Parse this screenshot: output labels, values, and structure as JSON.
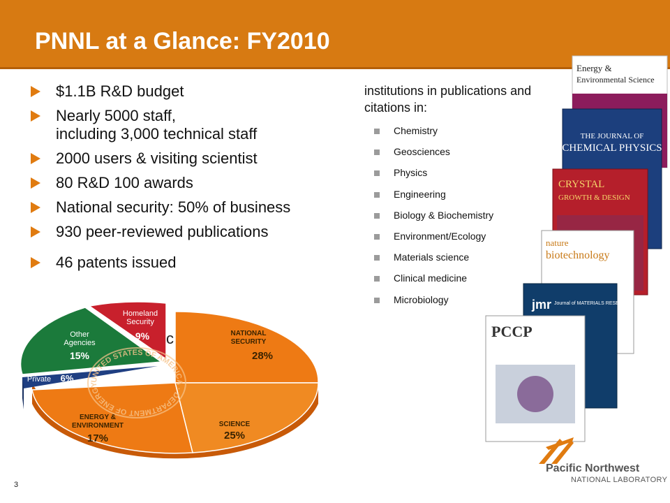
{
  "slide": {
    "title": "PNNL at a Glance: FY2010",
    "page_number": "3"
  },
  "bullets": [
    {
      "line1": "$1.1B R&D budget",
      "line2": ""
    },
    {
      "line1": "Nearly 5000 staff,",
      "line2": "including 3,000 technical staff"
    },
    {
      "line1": "2000 users & visiting scientist",
      "line2": ""
    },
    {
      "line1": "80 R&D 100 awards",
      "line2": ""
    },
    {
      "line1": "National security: 50% of business",
      "line2": ""
    },
    {
      "line1": "930 peer-reviewed publications",
      "line2": ""
    },
    {
      "line1": "46 patents issued",
      "line2": ""
    }
  ],
  "partial_text": "c",
  "right_column": {
    "intro": "institutions in publications and citations in:",
    "subjects": [
      "Chemistry",
      "Geosciences",
      "Physics",
      "Engineering",
      "Biology & Biochemistry",
      "Environment/Ecology",
      "Materials science",
      "Clinical medicine",
      "Microbiology"
    ]
  },
  "pie_chart": {
    "seal_text": "UNITED STATES OF AMERICA · DEPARTMENT OF ENERGY ·",
    "slices": [
      {
        "name": "NATIONAL SECURITY",
        "label_line1": "NATIONAL",
        "label_line2": "SECURITY",
        "pct_label": "28%",
        "color": "#ee7a14"
      },
      {
        "name": "SCIENCE",
        "label_line1": "SCIENCE",
        "label_line2": "",
        "pct_label": "25%",
        "color": "#ee7a14"
      },
      {
        "name": "ENERGY & ENVIRONMENT",
        "label_line1": "ENERGY &",
        "label_line2": "ENVIRONMENT",
        "pct_label": "17%",
        "color": "#ee7a14"
      },
      {
        "name": "Private",
        "label_line1": "Private",
        "label_line2": "",
        "pct_label": "6%",
        "color": "#1f3f82"
      },
      {
        "name": "Other Agencies",
        "label_line1": "Other",
        "label_line2": "Agencies",
        "pct_label": "15%",
        "color": "#1b7a3b"
      },
      {
        "name": "Homeland Security",
        "label_line1": "Homeland",
        "label_line2": "Security",
        "pct_label": "9%",
        "color": "#c8202c"
      }
    ]
  },
  "journal_covers": [
    {
      "title_line1": "Energy &",
      "title_line2": "Environmental Science",
      "color": "#ffffff"
    },
    {
      "title_line1": "THE JOURNAL OF",
      "title_line2": "CHEMICAL PHYSICS",
      "color": "#1c3f7d"
    },
    {
      "title_line1": "CRYSTAL",
      "title_line2": "GROWTH & DESIGN",
      "color": "#b51f2b"
    },
    {
      "title_line1": "nature",
      "title_line2": "biotechnology",
      "color": "#ffffff"
    },
    {
      "title_line1": "jmr",
      "title_line2": "Journal of MATERIALS RESEARCH",
      "color": "#103d6a"
    },
    {
      "title_line1": "PCCP",
      "title_line2": "",
      "color": "#ffffff"
    }
  ],
  "logo": {
    "line1": "Pacific Northwest",
    "line2": "NATIONAL LABORATORY",
    "color": "#e07b10"
  }
}
